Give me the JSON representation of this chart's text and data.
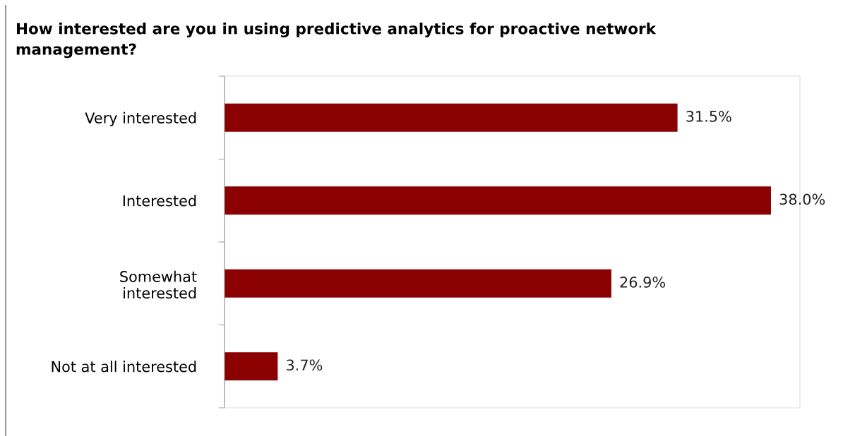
{
  "chart_data": {
    "type": "bar",
    "orientation": "horizontal",
    "title": "How interested are you in using predictive analytics for proactive network\nmanagement?",
    "categories": [
      "Very interested",
      "Interested",
      "Somewhat\ninterested",
      "Not at all interested"
    ],
    "values": [
      31.5,
      38.0,
      26.9,
      3.7
    ],
    "color": "#8b0000",
    "value_labels": [
      "31.5%",
      "38.0%",
      "26.9%",
      "3.7%"
    ],
    "grid": false
  }
}
